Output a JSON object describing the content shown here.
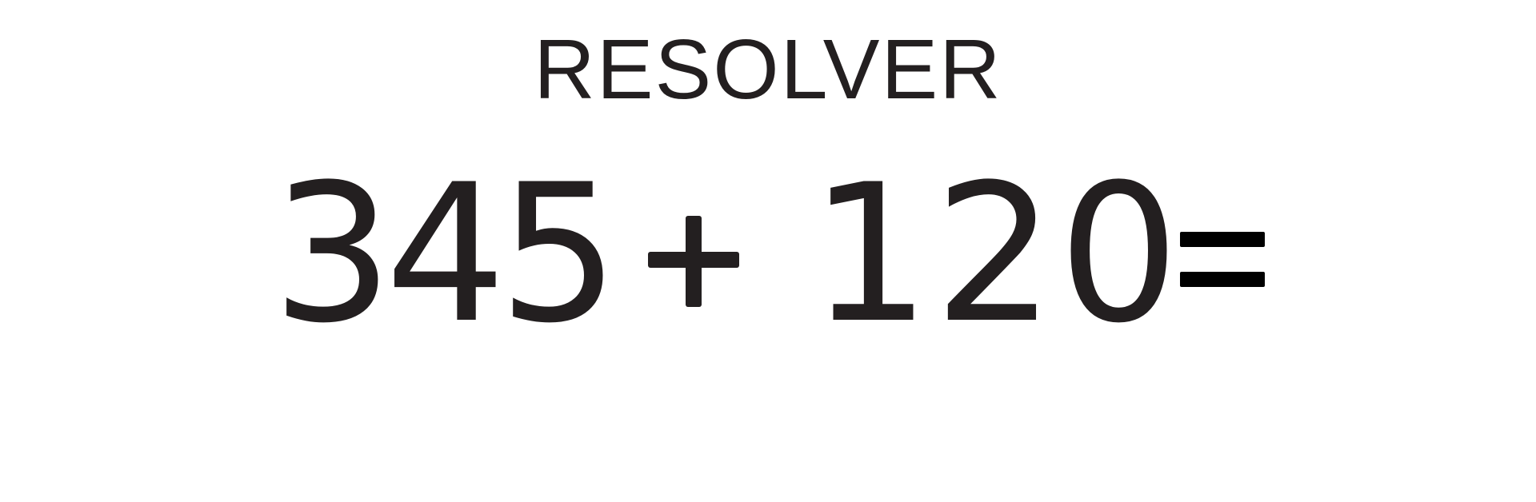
{
  "title": "RESOLVER",
  "equation": {
    "operand_a": "345",
    "operator": "+",
    "operand_b": "120",
    "equals": "="
  },
  "colors": {
    "text": "#231f20",
    "background": "#ffffff"
  }
}
